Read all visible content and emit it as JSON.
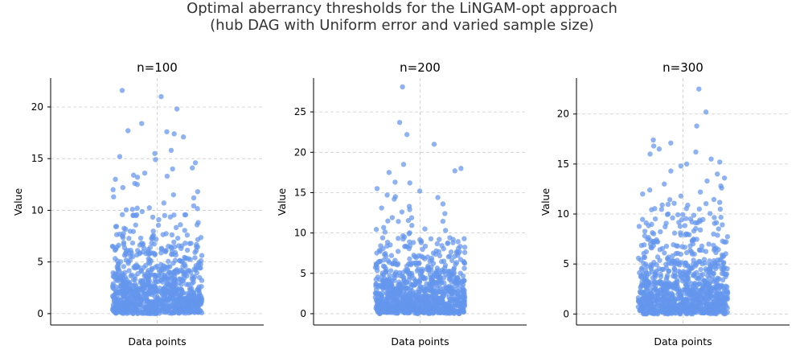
{
  "figure": {
    "title_line1": "Optimal aberrancy thresholds for the LiNGAM-opt approach",
    "title_line2": "(hub DAG with Uniform error and varied sample size)"
  },
  "style": {
    "point_color": "#6495ED",
    "grid_color": "#cccccc"
  },
  "chart_data": [
    {
      "type": "scatter",
      "title": "n=100",
      "xlabel": "Data points",
      "ylabel": "Value",
      "xlim": [
        -1,
        1
      ],
      "ylim": [
        -1.1,
        22.8
      ],
      "yticks": [
        0,
        5,
        10,
        15,
        20
      ],
      "grid": true,
      "jittered_strip": true,
      "n_points": 1000,
      "seed": 101,
      "dist_mean": 2.9,
      "dist_cut": 11,
      "outliers": [
        21.6,
        21.0,
        19.8,
        18.4,
        17.7,
        17.6,
        17.4,
        17.1,
        15.8,
        15.5,
        15.2,
        14.9,
        14.6,
        14.1,
        14.0,
        13.6,
        13.4,
        13.3,
        13.2,
        13.0,
        12.6,
        12.5,
        12.2,
        12.0,
        11.8,
        11.5,
        11.3,
        11.2
      ]
    },
    {
      "type": "scatter",
      "title": "n=200",
      "xlabel": "Data points",
      "ylabel": "Value",
      "xlim": [
        -1,
        1
      ],
      "ylim": [
        -1.4,
        29.2
      ],
      "yticks": [
        0,
        5,
        10,
        15,
        20,
        25
      ],
      "grid": true,
      "jittered_strip": true,
      "n_points": 1000,
      "seed": 202,
      "dist_mean": 3.0,
      "dist_cut": 12,
      "outliers": [
        28.1,
        23.7,
        22.2,
        21.0,
        18.5,
        18.0,
        17.7,
        17.5,
        16.3,
        16.2,
        15.5,
        15.2,
        14.7,
        14.5,
        14.4,
        14.2,
        13.6,
        13.3,
        13.1,
        12.9,
        12.6,
        12.4
      ]
    },
    {
      "type": "scatter",
      "title": "n=300",
      "xlabel": "Data points",
      "ylabel": "Value",
      "xlim": [
        -1,
        1
      ],
      "ylim": [
        -1.1,
        23.6
      ],
      "yticks": [
        0,
        5,
        10,
        15,
        20
      ],
      "grid": true,
      "jittered_strip": true,
      "n_points": 1000,
      "seed": 303,
      "dist_mean": 3.1,
      "dist_cut": 11.5,
      "outliers": [
        22.5,
        20.2,
        18.8,
        17.4,
        17.1,
        16.8,
        16.5,
        16.2,
        16.0,
        15.5,
        15.2,
        15.0,
        14.8,
        14.3,
        14.0,
        13.6,
        13.3,
        13.0,
        12.8,
        12.6,
        12.4,
        12.2,
        12.0,
        11.8
      ]
    }
  ]
}
